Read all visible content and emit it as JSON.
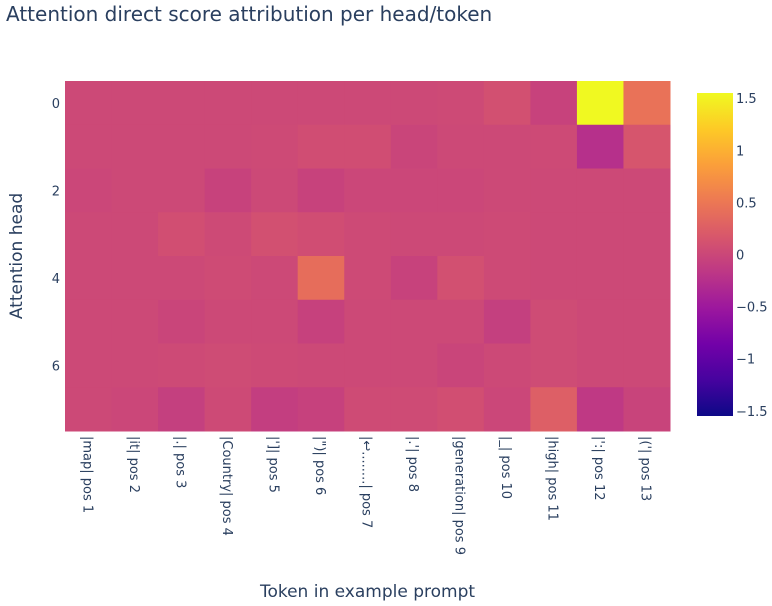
{
  "chart_data": {
    "type": "heatmap",
    "title": "Attention direct score attribution per head/token",
    "xlabel": "Token in example prompt",
    "ylabel": "Attention head",
    "x_categories": [
      "|map| pos 1",
      "|it| pos 2",
      "|.| pos 3",
      "|Country| pos 4",
      "|']| pos 5",
      "|\")| pos 6",
      "|↩........| pos 7",
      "|.'| pos 8",
      "|generation| pos 9",
      "|_| pos 10",
      "|high| pos 11",
      "|':| pos 12",
      "|('| pos 13"
    ],
    "y_categories": [
      0,
      1,
      2,
      3,
      4,
      5,
      6,
      7
    ],
    "y_tick_labels": [
      "0",
      "2",
      "4",
      "6"
    ],
    "values": [
      [
        0.02,
        0.02,
        0.02,
        0.02,
        0.02,
        0.02,
        0.02,
        0.02,
        0.03,
        0.1,
        -0.05,
        1.55,
        0.45
      ],
      [
        0.02,
        0.02,
        0.02,
        0.02,
        0.03,
        0.07,
        0.07,
        -0.02,
        0.02,
        0.02,
        0.03,
        -0.25,
        0.15
      ],
      [
        0.0,
        0.02,
        0.02,
        -0.05,
        0.02,
        -0.05,
        0.0,
        0.0,
        0.0,
        0.02,
        0.02,
        0.02,
        0.02
      ],
      [
        0.02,
        0.02,
        0.08,
        0.03,
        0.1,
        0.07,
        0.03,
        0.02,
        0.02,
        0.03,
        0.02,
        0.02,
        0.02
      ],
      [
        0.02,
        0.02,
        0.02,
        0.04,
        0.02,
        0.4,
        0.03,
        -0.05,
        0.1,
        0.03,
        0.02,
        0.02,
        0.02
      ],
      [
        0.02,
        0.02,
        -0.02,
        0.02,
        0.02,
        -0.06,
        0.02,
        0.02,
        0.02,
        -0.08,
        0.05,
        0.02,
        0.02
      ],
      [
        0.02,
        0.02,
        0.03,
        0.05,
        0.03,
        0.02,
        0.02,
        0.02,
        -0.02,
        0.02,
        0.05,
        0.02,
        0.02
      ],
      [
        0.02,
        0.0,
        -0.08,
        0.03,
        -0.1,
        -0.06,
        0.04,
        0.04,
        0.08,
        0.0,
        0.25,
        -0.15,
        -0.03
      ]
    ],
    "zmin": -1.55,
    "zmax": 1.55,
    "colorscale": "plasma",
    "colorbar_ticks": [
      1.5,
      1,
      0.5,
      0,
      -0.5,
      -1,
      -1.5
    ],
    "colorbar_tick_labels": [
      "1.5",
      "1",
      "0.5",
      "0",
      "−0.5",
      "−1",
      "−1.5"
    ]
  }
}
